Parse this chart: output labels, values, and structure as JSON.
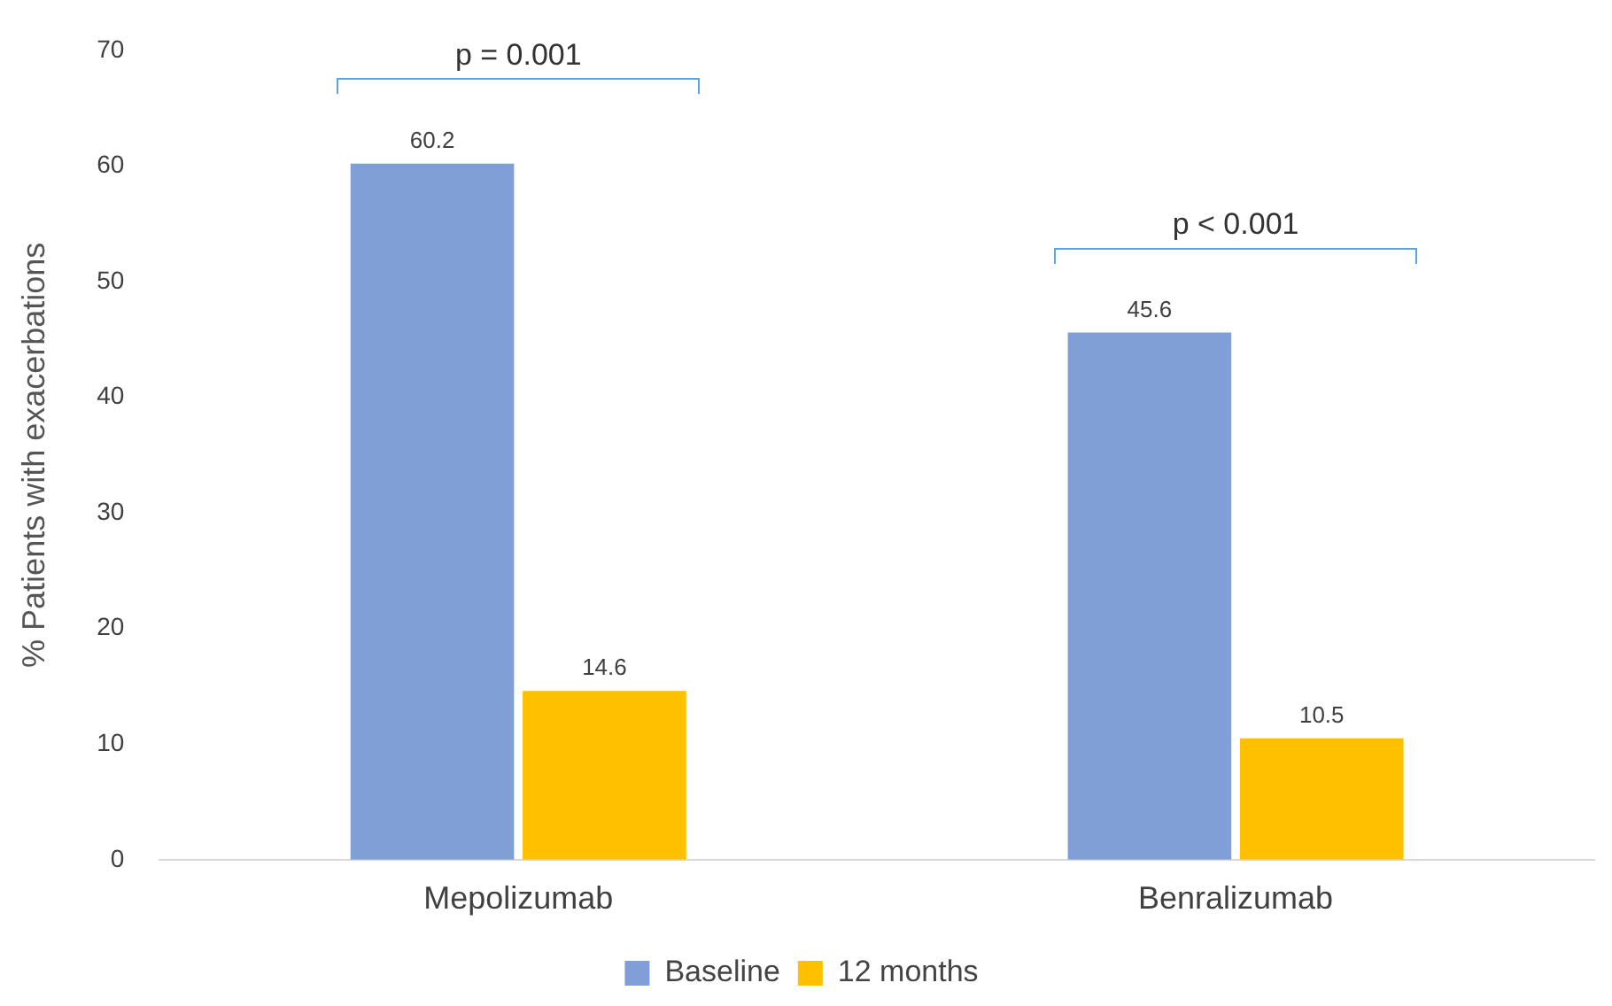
{
  "chart_data": {
    "type": "bar",
    "ylabel": "% Patients with exacerbations",
    "categories": [
      "Mepolizumab",
      "Benralizumab"
    ],
    "series": [
      {
        "name": "Baseline",
        "color": "#7f9fd6",
        "values": [
          60.2,
          45.6
        ]
      },
      {
        "name": "12 months",
        "color": "#ffc000",
        "values": [
          14.6,
          10.5
        ]
      }
    ],
    "ylim": [
      0,
      70
    ],
    "yticks": [
      0,
      10,
      20,
      30,
      40,
      50,
      60,
      70
    ],
    "grid": false,
    "legend": "bottom",
    "data_labels": true,
    "annotations": [
      "p = 0.001",
      "p < 0.001"
    ]
  }
}
